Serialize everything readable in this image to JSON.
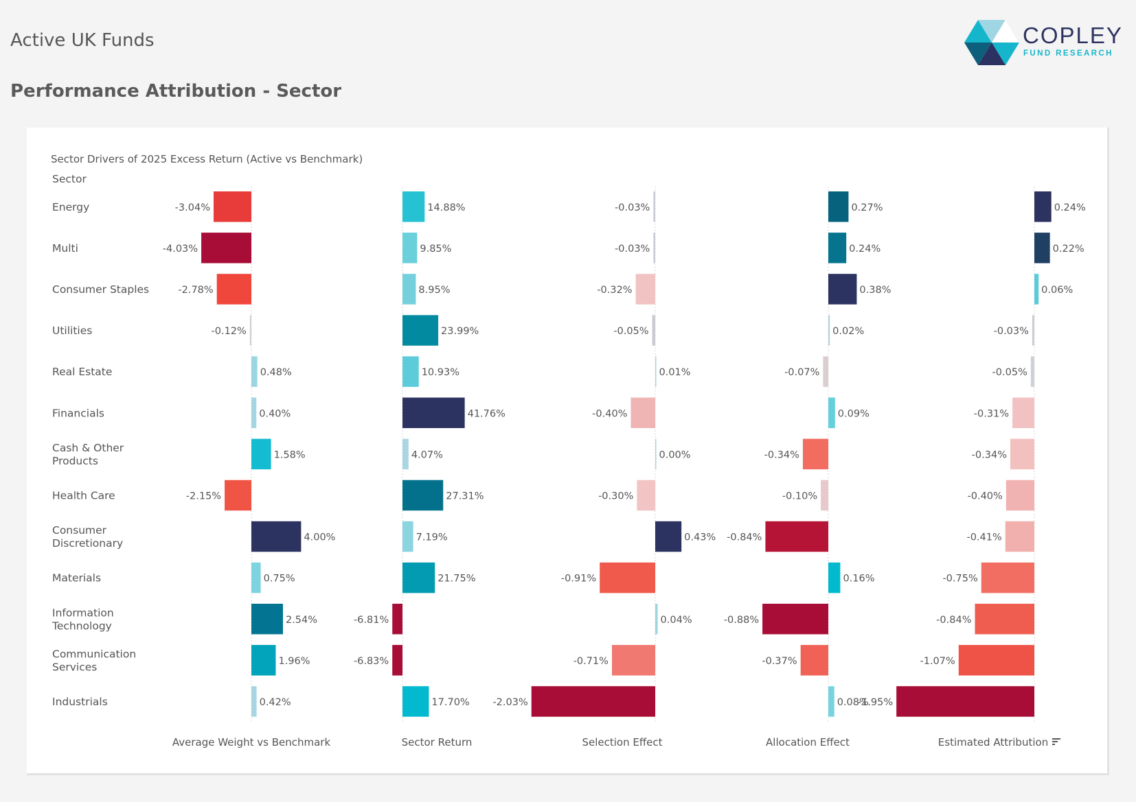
{
  "header": {
    "title": "Active UK Funds",
    "subtitle": "Performance Attribution - Sector"
  },
  "logo": {
    "name": "COPLEY",
    "tagline": "FUND RESEARCH",
    "colors": [
      "#15b6cc",
      "#9fd6e3",
      "#ffffff",
      "#0d5f7c",
      "#2b3160"
    ]
  },
  "chart_data": {
    "type": "bar",
    "orientation": "horizontal",
    "title": "Sector Drivers of 2025 Excess Return (Active vs Benchmark)",
    "row_header": "Sector",
    "unit": "%",
    "categories": [
      "Energy",
      "Multi",
      "Consumer Staples",
      "Utilities",
      "Real Estate",
      "Financials",
      "Cash & Other Products",
      "Health Care",
      "Consumer Discretionary",
      "Materials",
      "Information Technology",
      "Communication Services",
      "Industrials"
    ],
    "category_lines": [
      [
        "Energy"
      ],
      [
        "Multi"
      ],
      [
        "Consumer Staples"
      ],
      [
        "Utilities"
      ],
      [
        "Real Estate"
      ],
      [
        "Financials"
      ],
      [
        "Cash & Other",
        "Products"
      ],
      [
        "Health Care"
      ],
      [
        "Consumer",
        "Discretionary"
      ],
      [
        "Materials"
      ],
      [
        "Information",
        "Technology"
      ],
      [
        "Communication",
        "Services"
      ],
      [
        "Industrials"
      ]
    ],
    "sorted_by": "Estimated Attribution",
    "series": [
      {
        "name": "Average Weight vs Benchmark",
        "values": [
          -3.04,
          -4.03,
          -2.78,
          -0.12,
          0.48,
          0.4,
          1.58,
          -2.15,
          4.0,
          0.75,
          2.54,
          1.96,
          0.42
        ],
        "colors": [
          "#e73c3a",
          "#a80d37",
          "#f0473c",
          "#cfcfd4",
          "#9cd5e2",
          "#a3d6e2",
          "#13bcd0",
          "#f05445",
          "#2d3360",
          "#7dd3e0",
          "#037593",
          "#02a4bb",
          "#a8d5e2"
        ]
      },
      {
        "name": "Sector Return",
        "values": [
          14.88,
          9.85,
          8.95,
          23.99,
          10.93,
          41.76,
          4.07,
          27.31,
          7.19,
          21.75,
          -6.81,
          -6.83,
          17.7
        ],
        "colors": [
          "#26c1d3",
          "#69d0dc",
          "#74d0dc",
          "#028ba0",
          "#5ccbda",
          "#2d3360",
          "#a8d6e1",
          "#04718c",
          "#8ad5e0",
          "#039bb2",
          "#a80d37",
          "#a80d37",
          "#02b9cf"
        ]
      },
      {
        "name": "Selection Effect",
        "values": [
          -0.03,
          -0.03,
          -0.32,
          -0.05,
          0.01,
          -0.4,
          0.0,
          -0.3,
          0.43,
          -0.91,
          0.04,
          -0.71,
          -2.03
        ],
        "colors": [
          "#c8cdd6",
          "#c8cdd6",
          "#f2c3c3",
          "#c9cbd1",
          "#b9cfda",
          "#efb5b4",
          "#b9cfda",
          "#f3c4c4",
          "#2d3360",
          "#f05a4d",
          "#a1d4e1",
          "#f07a72",
          "#a80d37"
        ]
      },
      {
        "name": "Allocation Effect",
        "values": [
          0.27,
          0.24,
          0.38,
          0.02,
          -0.07,
          0.09,
          -0.34,
          -0.1,
          -0.84,
          0.16,
          -0.88,
          -0.37,
          0.08
        ],
        "colors": [
          "#07627e",
          "#06748f",
          "#2d3360",
          "#b8d2dc",
          "#dccdcf",
          "#66cfdc",
          "#f26c60",
          "#e8c9cb",
          "#b51436",
          "#02bace",
          "#a80d37",
          "#f06255",
          "#78d2df"
        ]
      },
      {
        "name": "Estimated Attribution",
        "values": [
          0.24,
          0.22,
          0.06,
          -0.03,
          -0.05,
          -0.31,
          -0.34,
          -0.4,
          -0.41,
          -0.75,
          -0.84,
          -1.07,
          -1.95
        ],
        "colors": [
          "#2d3360",
          "#1f3f63",
          "#5bcbd9",
          "#ccced5",
          "#cdd0d6",
          "#f2c2c2",
          "#f2c0bf",
          "#f1b3b1",
          "#f1b0ae",
          "#f26e62",
          "#ef5d50",
          "#ef5246",
          "#a80d37"
        ]
      }
    ],
    "x_domains": [
      [
        -4.6,
        4.6
      ],
      [
        -8.5,
        42.6
      ],
      [
        -2.5,
        2.5
      ],
      [
        -1.0,
        1.0
      ],
      [
        -2.3,
        2.3
      ]
    ],
    "gridlines": "zero-line-dotted",
    "legend": "none",
    "footer_sort_icon": "sort-descending-icon"
  }
}
